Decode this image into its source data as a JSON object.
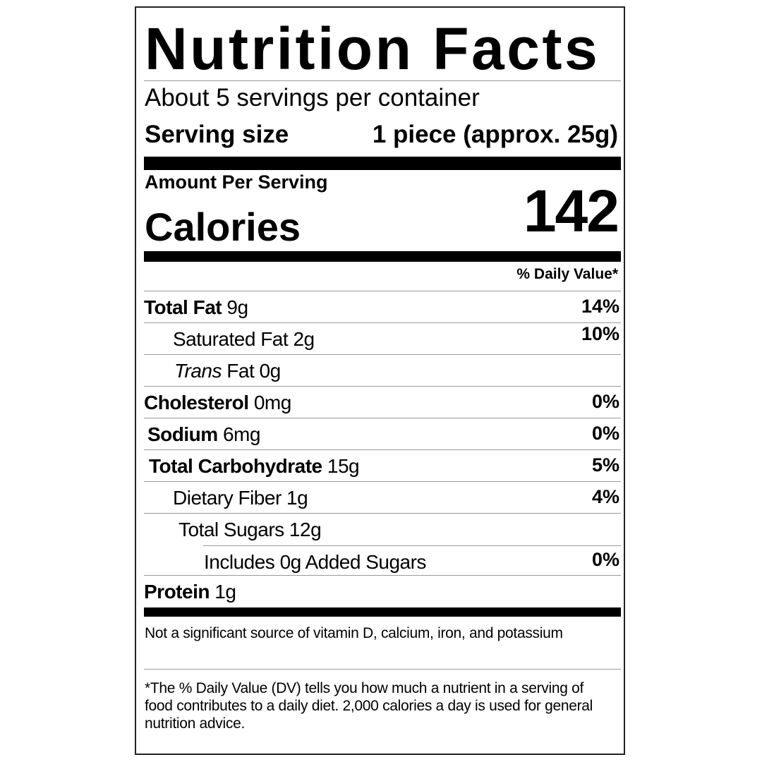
{
  "title": "Nutrition Facts",
  "servings_per_container": "About 5 servings per container",
  "serving_size_label": "Serving size",
  "serving_size_value": "1 piece (approx. 25g)",
  "amount_per_serving": "Amount Per Serving",
  "calories_label": "Calories",
  "calories_value": "142",
  "daily_value_header": "% Daily Value*",
  "nutrients": [
    {
      "name": "Total Fat",
      "amount": "9g",
      "dv": "14%"
    },
    {
      "name": "Saturated Fat",
      "amount": "2g",
      "dv": "10%"
    },
    {
      "name": "Trans",
      "name_suffix": "Fat",
      "amount": "0g",
      "dv": ""
    },
    {
      "name": "Cholesterol",
      "amount": "0mg",
      "dv": "0%"
    },
    {
      "name": "Sodium",
      "amount": "6mg",
      "dv": "0%"
    },
    {
      "name": "Total Carbohydrate",
      "amount": "15g",
      "dv": "5%"
    },
    {
      "name": "Dietary Fiber",
      "amount": "1g",
      "dv": "4%"
    },
    {
      "name": "Total Sugars",
      "amount": "12g",
      "dv": ""
    },
    {
      "name": "Includes 0g Added Sugars",
      "amount": "",
      "dv": "0%"
    },
    {
      "name": "Protein",
      "amount": "1g",
      "dv": ""
    }
  ],
  "footnote_vitamins": "Not a significant source of vitamin D, calcium, iron, and potassium",
  "footnote_dv": "*The % Daily Value (DV) tells you how much a nutrient in a serving of food contributes to a daily diet. 2,000 calories a day is used for general nutrition advice."
}
